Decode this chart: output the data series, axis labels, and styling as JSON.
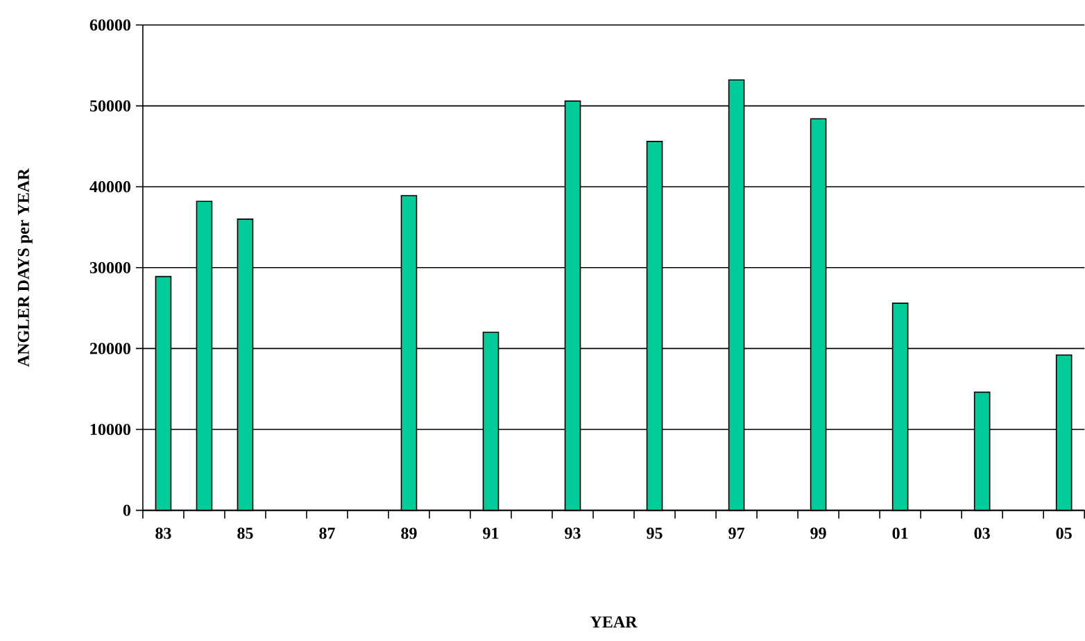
{
  "chart_data": {
    "type": "bar",
    "xlabel": "YEAR",
    "ylabel": "ANGLER DAYS per YEAR",
    "categories": [
      "83",
      null,
      "85",
      null,
      "87",
      null,
      "89",
      null,
      "91",
      null,
      "93",
      null,
      "95",
      null,
      "97",
      null,
      "99",
      null,
      "01",
      null,
      "03",
      null,
      "05"
    ],
    "values": [
      28900,
      38200,
      36000,
      null,
      null,
      null,
      38900,
      null,
      22000,
      null,
      50600,
      null,
      45600,
      null,
      53200,
      null,
      48400,
      null,
      25600,
      null,
      14600,
      null,
      19200
    ],
    "color": "#00cc99",
    "ylim": [
      0,
      60000
    ],
    "yticks": [
      0,
      10000,
      20000,
      30000,
      40000,
      50000,
      60000
    ],
    "grid": "y"
  }
}
